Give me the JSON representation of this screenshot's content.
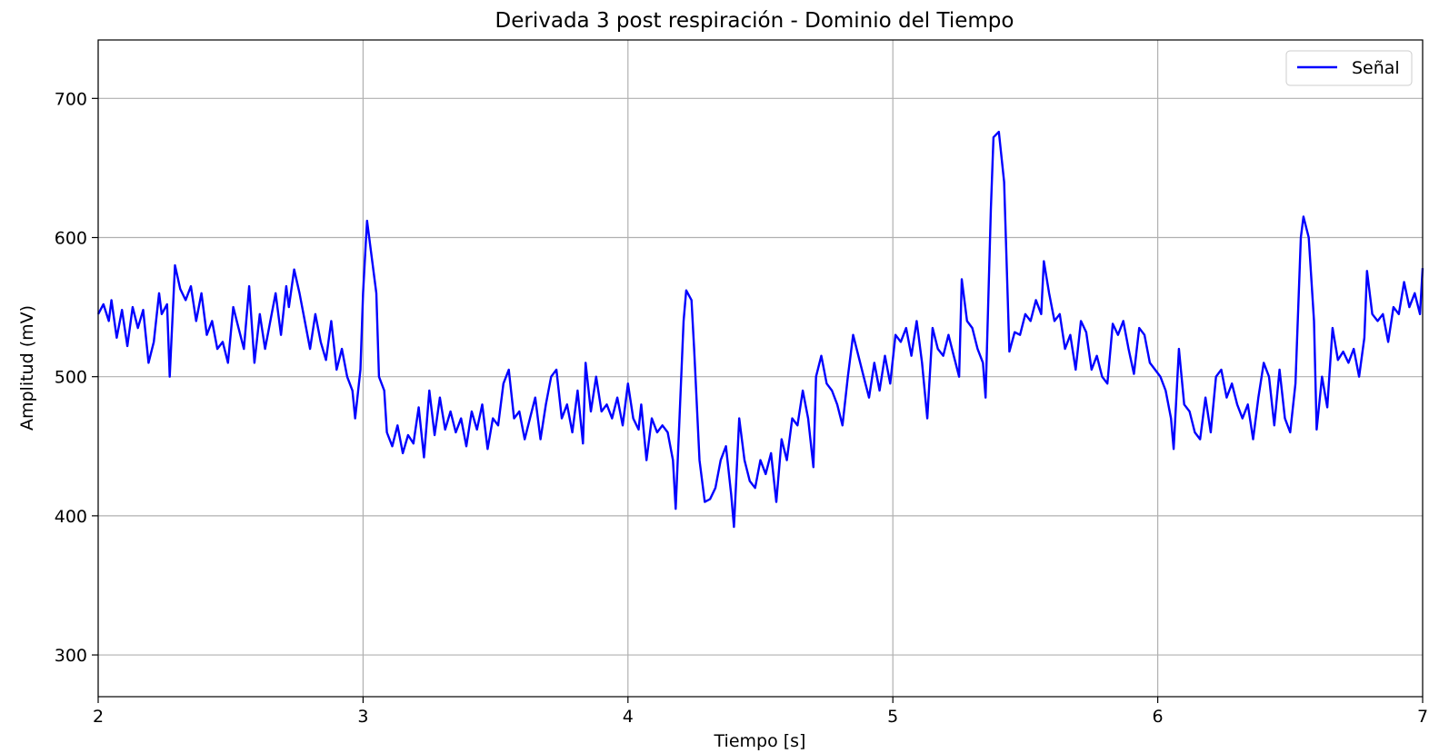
{
  "chart_data": {
    "type": "line",
    "title": "Derivada 3 post respiración - Dominio del Tiempo",
    "xlabel": "Tiempo [s]",
    "ylabel": "Amplitud (mV)",
    "xlim": [
      2,
      7
    ],
    "ylim": [
      270,
      742
    ],
    "xticks": [
      2,
      3,
      4,
      5,
      6,
      7
    ],
    "yticks": [
      300,
      400,
      500,
      600,
      700
    ],
    "grid": true,
    "legend_position": "top-right",
    "series": [
      {
        "name": "Señal",
        "color": "#0000ff",
        "points": [
          [
            2.0,
            545
          ],
          [
            2.02,
            552
          ],
          [
            2.04,
            540
          ],
          [
            2.05,
            555
          ],
          [
            2.07,
            528
          ],
          [
            2.09,
            548
          ],
          [
            2.11,
            522
          ],
          [
            2.13,
            550
          ],
          [
            2.15,
            535
          ],
          [
            2.17,
            548
          ],
          [
            2.19,
            510
          ],
          [
            2.21,
            525
          ],
          [
            2.23,
            560
          ],
          [
            2.24,
            545
          ],
          [
            2.26,
            552
          ],
          [
            2.27,
            500
          ],
          [
            2.29,
            580
          ],
          [
            2.31,
            563
          ],
          [
            2.33,
            555
          ],
          [
            2.35,
            565
          ],
          [
            2.37,
            540
          ],
          [
            2.39,
            560
          ],
          [
            2.41,
            530
          ],
          [
            2.43,
            540
          ],
          [
            2.45,
            520
          ],
          [
            2.47,
            525
          ],
          [
            2.49,
            510
          ],
          [
            2.51,
            550
          ],
          [
            2.53,
            535
          ],
          [
            2.55,
            520
          ],
          [
            2.57,
            565
          ],
          [
            2.59,
            510
          ],
          [
            2.61,
            545
          ],
          [
            2.63,
            520
          ],
          [
            2.65,
            540
          ],
          [
            2.67,
            560
          ],
          [
            2.69,
            530
          ],
          [
            2.71,
            565
          ],
          [
            2.72,
            550
          ],
          [
            2.74,
            577
          ],
          [
            2.76,
            560
          ],
          [
            2.78,
            540
          ],
          [
            2.8,
            520
          ],
          [
            2.82,
            545
          ],
          [
            2.84,
            525
          ],
          [
            2.86,
            512
          ],
          [
            2.88,
            540
          ],
          [
            2.9,
            505
          ],
          [
            2.92,
            520
          ],
          [
            2.94,
            500
          ],
          [
            2.96,
            490
          ],
          [
            2.97,
            470
          ],
          [
            2.99,
            505
          ],
          [
            3.0,
            560
          ],
          [
            3.01,
            595
          ],
          [
            3.015,
            612
          ],
          [
            3.03,
            590
          ],
          [
            3.05,
            560
          ],
          [
            3.06,
            500
          ],
          [
            3.08,
            490
          ],
          [
            3.09,
            460
          ],
          [
            3.11,
            450
          ],
          [
            3.13,
            465
          ],
          [
            3.15,
            445
          ],
          [
            3.17,
            458
          ],
          [
            3.19,
            452
          ],
          [
            3.21,
            478
          ],
          [
            3.23,
            442
          ],
          [
            3.25,
            490
          ],
          [
            3.27,
            458
          ],
          [
            3.29,
            485
          ],
          [
            3.31,
            462
          ],
          [
            3.33,
            475
          ],
          [
            3.35,
            460
          ],
          [
            3.37,
            470
          ],
          [
            3.39,
            450
          ],
          [
            3.41,
            475
          ],
          [
            3.43,
            462
          ],
          [
            3.45,
            480
          ],
          [
            3.47,
            448
          ],
          [
            3.49,
            470
          ],
          [
            3.51,
            465
          ],
          [
            3.53,
            495
          ],
          [
            3.55,
            505
          ],
          [
            3.57,
            470
          ],
          [
            3.59,
            475
          ],
          [
            3.61,
            455
          ],
          [
            3.63,
            470
          ],
          [
            3.65,
            485
          ],
          [
            3.67,
            455
          ],
          [
            3.69,
            480
          ],
          [
            3.71,
            500
          ],
          [
            3.73,
            505
          ],
          [
            3.75,
            470
          ],
          [
            3.77,
            480
          ],
          [
            3.79,
            460
          ],
          [
            3.81,
            490
          ],
          [
            3.83,
            452
          ],
          [
            3.84,
            510
          ],
          [
            3.86,
            475
          ],
          [
            3.88,
            500
          ],
          [
            3.9,
            475
          ],
          [
            3.92,
            480
          ],
          [
            3.94,
            470
          ],
          [
            3.96,
            485
          ],
          [
            3.98,
            465
          ],
          [
            4.0,
            495
          ],
          [
            4.02,
            470
          ],
          [
            4.04,
            462
          ],
          [
            4.05,
            480
          ],
          [
            4.07,
            440
          ],
          [
            4.09,
            470
          ],
          [
            4.11,
            460
          ],
          [
            4.13,
            465
          ],
          [
            4.15,
            460
          ],
          [
            4.17,
            440
          ],
          [
            4.18,
            405
          ],
          [
            4.19,
            450
          ],
          [
            4.21,
            540
          ],
          [
            4.22,
            562
          ],
          [
            4.24,
            555
          ],
          [
            4.25,
            520
          ],
          [
            4.27,
            440
          ],
          [
            4.29,
            410
          ],
          [
            4.31,
            412
          ],
          [
            4.33,
            420
          ],
          [
            4.35,
            440
          ],
          [
            4.37,
            450
          ],
          [
            4.39,
            415
          ],
          [
            4.4,
            392
          ],
          [
            4.42,
            470
          ],
          [
            4.44,
            440
          ],
          [
            4.46,
            425
          ],
          [
            4.48,
            420
          ],
          [
            4.5,
            440
          ],
          [
            4.52,
            430
          ],
          [
            4.54,
            445
          ],
          [
            4.56,
            410
          ],
          [
            4.58,
            455
          ],
          [
            4.6,
            440
          ],
          [
            4.62,
            470
          ],
          [
            4.64,
            465
          ],
          [
            4.66,
            490
          ],
          [
            4.68,
            470
          ],
          [
            4.7,
            435
          ],
          [
            4.71,
            500
          ],
          [
            4.73,
            515
          ],
          [
            4.75,
            495
          ],
          [
            4.77,
            490
          ],
          [
            4.79,
            480
          ],
          [
            4.81,
            465
          ],
          [
            4.83,
            500
          ],
          [
            4.85,
            530
          ],
          [
            4.87,
            515
          ],
          [
            4.89,
            500
          ],
          [
            4.91,
            485
          ],
          [
            4.93,
            510
          ],
          [
            4.95,
            490
          ],
          [
            4.97,
            515
          ],
          [
            4.99,
            495
          ],
          [
            5.01,
            530
          ],
          [
            5.03,
            525
          ],
          [
            5.05,
            535
          ],
          [
            5.07,
            515
          ],
          [
            5.09,
            540
          ],
          [
            5.11,
            510
          ],
          [
            5.13,
            470
          ],
          [
            5.15,
            535
          ],
          [
            5.17,
            520
          ],
          [
            5.19,
            515
          ],
          [
            5.21,
            530
          ],
          [
            5.23,
            515
          ],
          [
            5.25,
            500
          ],
          [
            5.26,
            570
          ],
          [
            5.28,
            540
          ],
          [
            5.3,
            535
          ],
          [
            5.32,
            520
          ],
          [
            5.34,
            510
          ],
          [
            5.35,
            485
          ],
          [
            5.37,
            620
          ],
          [
            5.38,
            672
          ],
          [
            5.4,
            676
          ],
          [
            5.42,
            640
          ],
          [
            5.44,
            518
          ],
          [
            5.46,
            532
          ],
          [
            5.48,
            530
          ],
          [
            5.5,
            545
          ],
          [
            5.52,
            540
          ],
          [
            5.54,
            555
          ],
          [
            5.56,
            545
          ],
          [
            5.57,
            583
          ],
          [
            5.59,
            560
          ],
          [
            5.61,
            540
          ],
          [
            5.63,
            545
          ],
          [
            5.65,
            520
          ],
          [
            5.67,
            530
          ],
          [
            5.69,
            505
          ],
          [
            5.71,
            540
          ],
          [
            5.73,
            532
          ],
          [
            5.75,
            505
          ],
          [
            5.77,
            515
          ],
          [
            5.79,
            500
          ],
          [
            5.81,
            495
          ],
          [
            5.83,
            538
          ],
          [
            5.85,
            530
          ],
          [
            5.87,
            540
          ],
          [
            5.89,
            520
          ],
          [
            5.91,
            502
          ],
          [
            5.93,
            535
          ],
          [
            5.95,
            530
          ],
          [
            5.97,
            510
          ],
          [
            5.99,
            505
          ],
          [
            6.01,
            500
          ],
          [
            6.03,
            490
          ],
          [
            6.05,
            470
          ],
          [
            6.06,
            448
          ],
          [
            6.08,
            520
          ],
          [
            6.1,
            480
          ],
          [
            6.12,
            475
          ],
          [
            6.14,
            460
          ],
          [
            6.16,
            455
          ],
          [
            6.18,
            485
          ],
          [
            6.2,
            460
          ],
          [
            6.22,
            500
          ],
          [
            6.24,
            505
          ],
          [
            6.26,
            485
          ],
          [
            6.28,
            495
          ],
          [
            6.3,
            480
          ],
          [
            6.32,
            470
          ],
          [
            6.34,
            480
          ],
          [
            6.36,
            455
          ],
          [
            6.38,
            485
          ],
          [
            6.4,
            510
          ],
          [
            6.42,
            500
          ],
          [
            6.44,
            465
          ],
          [
            6.46,
            505
          ],
          [
            6.48,
            470
          ],
          [
            6.5,
            460
          ],
          [
            6.52,
            495
          ],
          [
            6.54,
            600
          ],
          [
            6.55,
            615
          ],
          [
            6.57,
            600
          ],
          [
            6.59,
            540
          ],
          [
            6.6,
            462
          ],
          [
            6.62,
            500
          ],
          [
            6.64,
            478
          ],
          [
            6.66,
            535
          ],
          [
            6.68,
            512
          ],
          [
            6.7,
            518
          ],
          [
            6.72,
            510
          ],
          [
            6.74,
            520
          ],
          [
            6.76,
            500
          ],
          [
            6.78,
            528
          ],
          [
            6.79,
            576
          ],
          [
            6.81,
            545
          ],
          [
            6.83,
            540
          ],
          [
            6.85,
            545
          ],
          [
            6.87,
            525
          ],
          [
            6.89,
            550
          ],
          [
            6.91,
            545
          ],
          [
            6.93,
            568
          ],
          [
            6.95,
            550
          ],
          [
            6.97,
            560
          ],
          [
            6.99,
            545
          ],
          [
            7.0,
            578
          ]
        ]
      }
    ]
  }
}
